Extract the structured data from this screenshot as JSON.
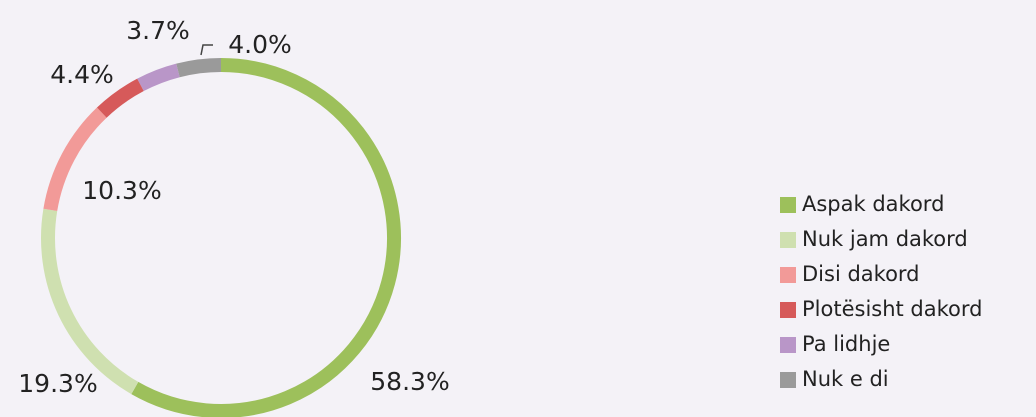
{
  "chart_data": {
    "type": "donut",
    "categories": [
      "Aspak dakord",
      "Nuk jam dakord",
      "Disi dakord",
      "Plotësisht dakord",
      "Pa lidhje",
      "Nuk e di"
    ],
    "values": [
      58.3,
      19.3,
      10.3,
      4.4,
      3.7,
      4.0
    ],
    "value_labels": [
      "58.3%",
      "19.3%",
      "10.3%",
      "4.4%",
      "3.7%",
      "4.0%"
    ],
    "colors": [
      "#9dc05b",
      "#cfe0b0",
      "#f29a98",
      "#d65a5a",
      "#b996c8",
      "#9a9a9a"
    ],
    "legend": "right"
  }
}
